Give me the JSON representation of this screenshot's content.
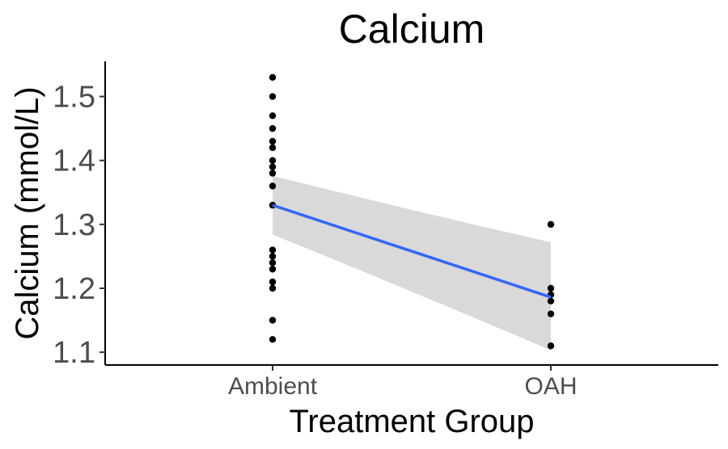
{
  "chart_data": {
    "type": "scatter",
    "title": "Calcium",
    "xlabel": "Treatment Group",
    "ylabel": "Calcium (mmol/L)",
    "categories": [
      "Ambient",
      "OAH"
    ],
    "ylim": [
      1.08,
      1.555
    ],
    "yticks": [
      1.1,
      1.2,
      1.3,
      1.4,
      1.5
    ],
    "ytick_labels": [
      "1.1",
      "1.2",
      "1.3",
      "1.4",
      "1.5"
    ],
    "grid": false,
    "legend": "none",
    "points": [
      {
        "x": "Ambient",
        "y": 1.53
      },
      {
        "x": "Ambient",
        "y": 1.5
      },
      {
        "x": "Ambient",
        "y": 1.47
      },
      {
        "x": "Ambient",
        "y": 1.45
      },
      {
        "x": "Ambient",
        "y": 1.43
      },
      {
        "x": "Ambient",
        "y": 1.42
      },
      {
        "x": "Ambient",
        "y": 1.4
      },
      {
        "x": "Ambient",
        "y": 1.39
      },
      {
        "x": "Ambient",
        "y": 1.38
      },
      {
        "x": "Ambient",
        "y": 1.36
      },
      {
        "x": "Ambient",
        "y": 1.33
      },
      {
        "x": "Ambient",
        "y": 1.26
      },
      {
        "x": "Ambient",
        "y": 1.25
      },
      {
        "x": "Ambient",
        "y": 1.24
      },
      {
        "x": "Ambient",
        "y": 1.23
      },
      {
        "x": "Ambient",
        "y": 1.21
      },
      {
        "x": "Ambient",
        "y": 1.2
      },
      {
        "x": "Ambient",
        "y": 1.15
      },
      {
        "x": "Ambient",
        "y": 1.12
      },
      {
        "x": "OAH",
        "y": 1.3
      },
      {
        "x": "OAH",
        "y": 1.2
      },
      {
        "x": "OAH",
        "y": 1.19
      },
      {
        "x": "OAH",
        "y": 1.18
      },
      {
        "x": "OAH",
        "y": 1.16
      },
      {
        "x": "OAH",
        "y": 1.11
      }
    ],
    "fit_line": {
      "method": "linear",
      "from": {
        "x": "Ambient",
        "y": 1.33
      },
      "to": {
        "x": "OAH",
        "y": 1.186
      },
      "ci_lower": [
        1.284,
        1.103
      ],
      "ci_upper": [
        1.376,
        1.272
      ],
      "color": "#3366ff",
      "ci_color": "#d9d9d9"
    },
    "point_color": "#000000"
  }
}
